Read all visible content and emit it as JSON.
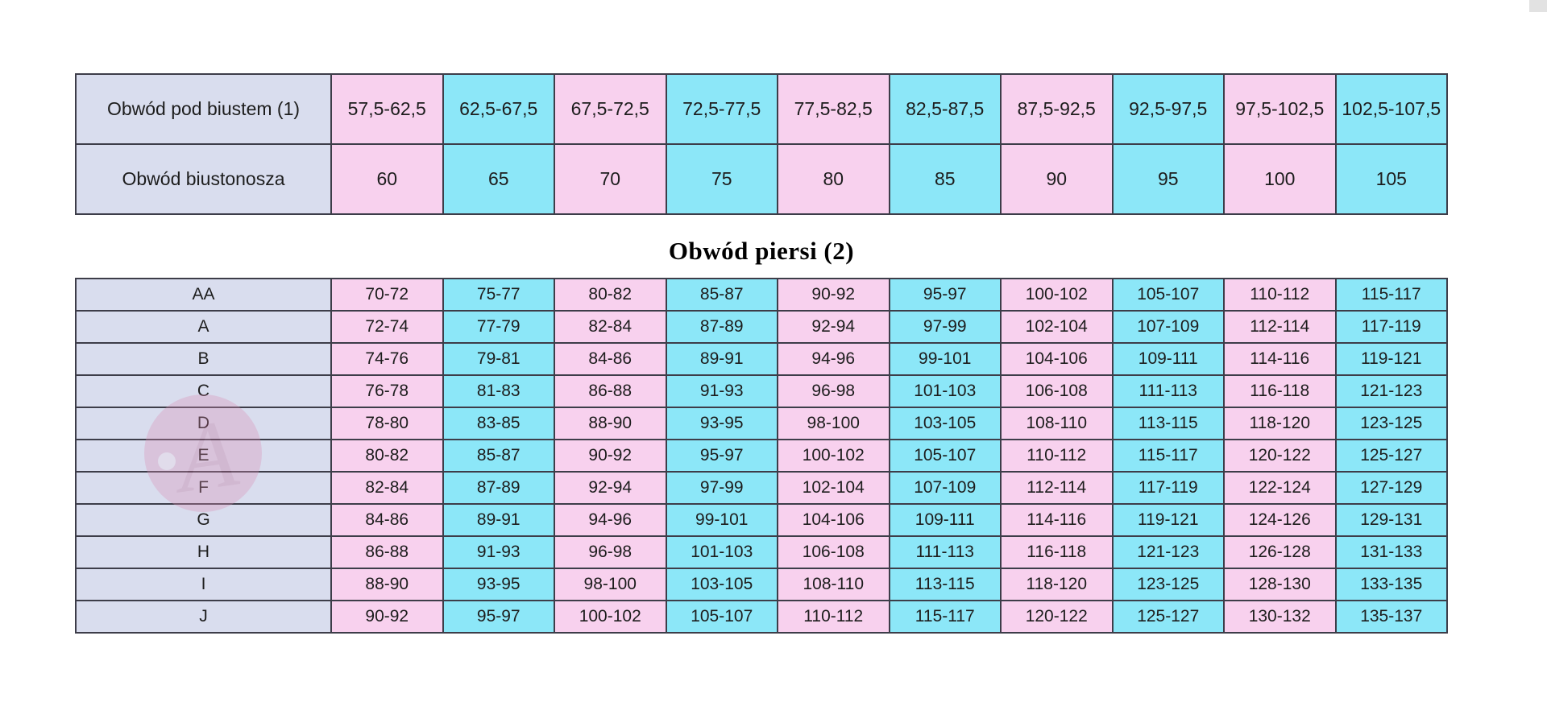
{
  "title": "Obwód piersi (2)",
  "band_table": {
    "rows": [
      {
        "label": "Obwód pod biustem (1)",
        "values": [
          "57,5-62,5",
          "62,5-67,5",
          "67,5-72,5",
          "72,5-77,5",
          "77,5-82,5",
          "82,5-87,5",
          "87,5-92,5",
          "92,5-97,5",
          "97,5-102,5",
          "102,5-107,5"
        ]
      },
      {
        "label": "Obwód biustonosza",
        "values": [
          "60",
          "65",
          "70",
          "75",
          "80",
          "85",
          "90",
          "95",
          "100",
          "105"
        ]
      }
    ]
  },
  "cup_table": {
    "rows": [
      {
        "label": "AA",
        "values": [
          "70-72",
          "75-77",
          "80-82",
          "85-87",
          "90-92",
          "95-97",
          "100-102",
          "105-107",
          "110-112",
          "115-117"
        ]
      },
      {
        "label": "A",
        "values": [
          "72-74",
          "77-79",
          "82-84",
          "87-89",
          "92-94",
          "97-99",
          "102-104",
          "107-109",
          "112-114",
          "117-119"
        ]
      },
      {
        "label": "B",
        "values": [
          "74-76",
          "79-81",
          "84-86",
          "89-91",
          "94-96",
          "99-101",
          "104-106",
          "109-111",
          "114-116",
          "119-121"
        ]
      },
      {
        "label": "C",
        "values": [
          "76-78",
          "81-83",
          "86-88",
          "91-93",
          "96-98",
          "101-103",
          "106-108",
          "111-113",
          "116-118",
          "121-123"
        ]
      },
      {
        "label": "D",
        "values": [
          "78-80",
          "83-85",
          "88-90",
          "93-95",
          "98-100",
          "103-105",
          "108-110",
          "113-115",
          "118-120",
          "123-125"
        ]
      },
      {
        "label": "E",
        "values": [
          "80-82",
          "85-87",
          "90-92",
          "95-97",
          "100-102",
          "105-107",
          "110-112",
          "115-117",
          "120-122",
          "125-127"
        ]
      },
      {
        "label": "F",
        "values": [
          "82-84",
          "87-89",
          "92-94",
          "97-99",
          "102-104",
          "107-109",
          "112-114",
          "117-119",
          "122-124",
          "127-129"
        ]
      },
      {
        "label": "G",
        "values": [
          "84-86",
          "89-91",
          "94-96",
          "99-101",
          "104-106",
          "109-111",
          "114-116",
          "119-121",
          "124-126",
          "129-131"
        ]
      },
      {
        "label": "H",
        "values": [
          "86-88",
          "91-93",
          "96-98",
          "101-103",
          "106-108",
          "111-113",
          "116-118",
          "121-123",
          "126-128",
          "131-133"
        ]
      },
      {
        "label": "I",
        "values": [
          "88-90",
          "93-95",
          "98-100",
          "103-105",
          "108-110",
          "113-115",
          "118-120",
          "123-125",
          "128-130",
          "133-135"
        ]
      },
      {
        "label": "J",
        "values": [
          "90-92",
          "95-97",
          "100-102",
          "105-107",
          "110-112",
          "115-117",
          "120-122",
          "125-127",
          "130-132",
          "135-137"
        ]
      }
    ]
  },
  "watermark": {
    "letter": "A"
  },
  "colors": {
    "pink": "#f8d1ee",
    "cyan": "#8ce7f8",
    "lavender": "#d9ddee",
    "border": "#3d3d49",
    "wmrose": "#d98fb4",
    "wmglyph": "#c16d95",
    "wmdot": "#f2dbe7",
    "corner": "#e2e2e2"
  }
}
